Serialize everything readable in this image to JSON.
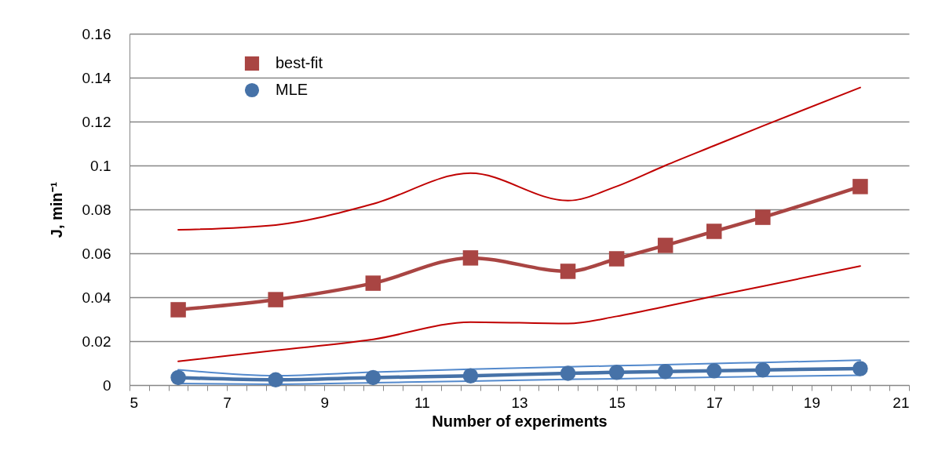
{
  "chart_data": {
    "type": "line",
    "xlabel": "Number of experiments",
    "ylabel": "J, min⁻¹",
    "xlim": [
      5,
      21
    ],
    "xticks": [
      5,
      {
        "value": 5.4,
        "label": null
      },
      {
        "value": 5.8,
        "label": null
      },
      {
        "value": 6.2,
        "label": null
      },
      {
        "value": 6.6,
        "label": null
      },
      7,
      {
        "value": 7.4,
        "label": null
      },
      {
        "value": 7.8,
        "label": null
      },
      {
        "value": 8.2,
        "label": null
      },
      {
        "value": 8.6,
        "label": null
      },
      9,
      {
        "value": 9.4,
        "label": null
      },
      {
        "value": 9.8,
        "label": null
      },
      {
        "value": 10.2,
        "label": null
      },
      {
        "value": 10.6,
        "label": null
      },
      11,
      {
        "value": 11.4,
        "label": null
      },
      {
        "value": 11.8,
        "label": null
      },
      {
        "value": 12.2,
        "label": null
      },
      {
        "value": 12.6,
        "label": null
      },
      13,
      {
        "value": 13.4,
        "label": null
      },
      {
        "value": 13.8,
        "label": null
      },
      {
        "value": 14.2,
        "label": null
      },
      {
        "value": 14.6,
        "label": null
      },
      15,
      {
        "value": 15.4,
        "label": null
      },
      {
        "value": 15.8,
        "label": null
      },
      {
        "value": 16.2,
        "label": null
      },
      {
        "value": 16.6,
        "label": null
      },
      17,
      {
        "value": 17.4,
        "label": null
      },
      {
        "value": 17.8,
        "label": null
      },
      {
        "value": 18.2,
        "label": null
      },
      {
        "value": 18.6,
        "label": null
      },
      19,
      {
        "value": 19.4,
        "label": null
      },
      {
        "value": 19.8,
        "label": null
      },
      {
        "value": 20.2,
        "label": null
      },
      {
        "value": 20.6,
        "label": null
      },
      21
    ],
    "ylim": [
      0,
      0.16
    ],
    "yticks": [
      0,
      0.02,
      0.04,
      0.06,
      0.08,
      0.1,
      0.12,
      0.14,
      0.16
    ],
    "grid": "y",
    "legend": "top left",
    "x": [
      6,
      8,
      10,
      12,
      14,
      15,
      16,
      17,
      18,
      20
    ],
    "series": [
      {
        "name": "best-fit",
        "color": "#a94543",
        "marker": "square",
        "values": [
          0.0343,
          0.0389,
          0.0464,
          0.0579,
          0.0518,
          0.0575,
          0.0636,
          0.07,
          0.0764,
          0.0904
        ]
      },
      {
        "color": "#c00000",
        "marker": "none",
        "values": [
          0.0707,
          0.0729,
          0.0825,
          0.0965,
          0.084,
          0.0905,
          0.1,
          0.109,
          0.118,
          0.1355
        ]
      },
      {
        "color": "#c00000",
        "marker": "none",
        "values": [
          0.0108,
          0.0158,
          0.0208,
          0.0287,
          0.028,
          0.0313,
          0.0358,
          0.0405,
          0.045,
          0.0542
        ]
      },
      {
        "name": "MLE",
        "color": "#4672a8",
        "marker": "circle",
        "values": [
          0.0034,
          0.0024,
          0.0034,
          0.0042,
          0.0054,
          0.0058,
          0.0062,
          0.0065,
          0.0069,
          0.0075
        ]
      },
      {
        "color": "#5389cc",
        "marker": "none",
        "values": [
          0.007,
          0.0043,
          0.0059,
          0.0072,
          0.0083,
          0.0088,
          0.0093,
          0.0098,
          0.0103,
          0.0113
        ]
      },
      {
        "color": "#5389cc",
        "marker": "none",
        "values": [
          0.0007,
          0.0004,
          0.0011,
          0.0018,
          0.0026,
          0.0029,
          0.0032,
          0.0036,
          0.0039,
          0.0045
        ]
      }
    ]
  }
}
